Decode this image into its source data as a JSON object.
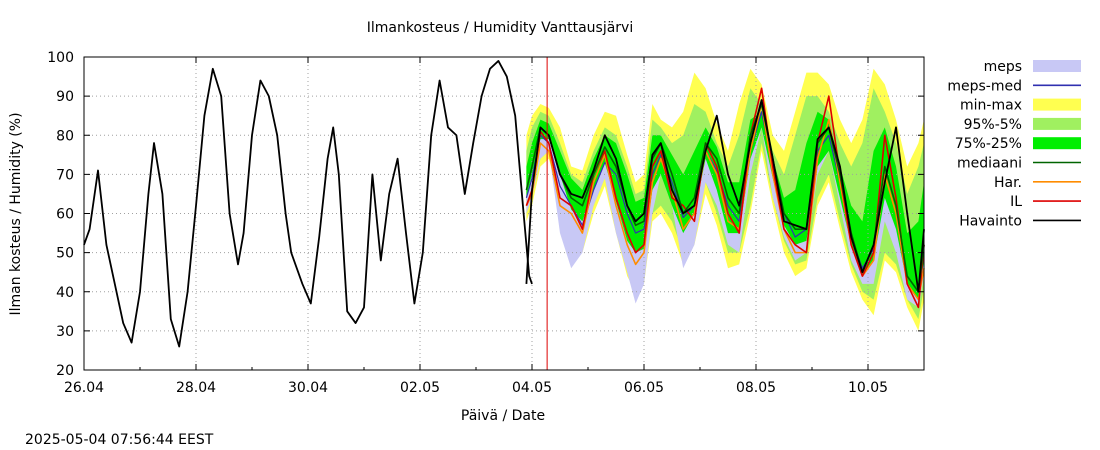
{
  "chart_data": {
    "type": "line",
    "title": "Ilmankosteus / Humidity  Vanttausjärvi",
    "xlabel": "Päivä / Date",
    "ylabel": "Ilman kosteus / Humidity (%)",
    "timestamp": "2025-05-04 07:56:44 EEST",
    "x_unit": "days since 26.04 00:00",
    "xlim": [
      0,
      15.0
    ],
    "ylim": [
      20,
      100
    ],
    "x_ticks": [
      {
        "x": 0,
        "label": "26.04"
      },
      {
        "x": 2,
        "label": "28.04"
      },
      {
        "x": 4,
        "label": "30.04"
      },
      {
        "x": 6,
        "label": "02.05"
      },
      {
        "x": 8,
        "label": "04.05"
      },
      {
        "x": 10,
        "label": "06.05"
      },
      {
        "x": 12,
        "label": "08.05"
      },
      {
        "x": 14,
        "label": "10.05"
      }
    ],
    "y_ticks": [
      20,
      30,
      40,
      50,
      60,
      70,
      80,
      90,
      100
    ],
    "now_x": 8.27,
    "colors": {
      "meps": "#c8c8f5",
      "meps_med": "#3030b0",
      "minmax": "#ffff50",
      "p95_5": "#a0f060",
      "p75_25": "#00ee00",
      "mediaani": "#006400",
      "har": "#ff8c00",
      "il": "#dd0000",
      "havainto": "#000000",
      "now_line": "#dd0000"
    },
    "legend": {
      "position": "right",
      "entries": [
        {
          "key": "meps",
          "label": "meps",
          "style": "box"
        },
        {
          "key": "meps_med",
          "label": "meps-med",
          "style": "line"
        },
        {
          "key": "minmax",
          "label": "min-max",
          "style": "box"
        },
        {
          "key": "p95_5",
          "label": "95%-5%",
          "style": "box"
        },
        {
          "key": "p75_25",
          "label": "75%-25%",
          "style": "box"
        },
        {
          "key": "mediaani",
          "label": "mediaani",
          "style": "line"
        },
        {
          "key": "har",
          "label": "Har.",
          "style": "line"
        },
        {
          "key": "il",
          "label": "IL",
          "style": "line"
        },
        {
          "key": "havainto",
          "label": "Havainto",
          "style": "line"
        }
      ]
    },
    "havainto": {
      "x": [
        0,
        0.1,
        0.25,
        0.4,
        0.55,
        0.7,
        0.85,
        1.0,
        1.15,
        1.25,
        1.4,
        1.55,
        1.7,
        1.85,
        2.0,
        2.15,
        2.3,
        2.45,
        2.6,
        2.75,
        2.85,
        3.0,
        3.15,
        3.3,
        3.45,
        3.6,
        3.7,
        3.9,
        4.05,
        4.2,
        4.35,
        4.45,
        4.55,
        4.7,
        4.85,
        5.0,
        5.15,
        5.3,
        5.45,
        5.6,
        5.75,
        5.9,
        6.05,
        6.2,
        6.35,
        6.5,
        6.65,
        6.8,
        6.95,
        7.1,
        7.25,
        7.4,
        7.55,
        7.7,
        7.85,
        7.95,
        8.0
      ],
      "y": [
        52,
        56,
        71,
        52,
        42,
        32,
        27,
        40,
        65,
        78,
        65,
        33,
        26,
        40,
        62,
        85,
        97,
        90,
        60,
        47,
        55,
        80,
        94,
        90,
        80,
        60,
        50,
        42,
        37,
        54,
        74,
        82,
        70,
        35,
        32,
        36,
        70,
        48,
        65,
        74,
        55,
        37,
        50,
        80,
        94,
        82,
        80,
        65,
        78,
        90,
        97,
        99,
        95,
        85,
        60,
        44,
        42
      ]
    },
    "x": [
      7.9,
      8.0,
      8.15,
      8.3,
      8.5,
      8.7,
      8.9,
      9.1,
      9.3,
      9.5,
      9.7,
      9.85,
      10.0,
      10.15,
      10.3,
      10.5,
      10.7,
      10.9,
      11.1,
      11.3,
      11.5,
      11.7,
      11.9,
      12.1,
      12.3,
      12.5,
      12.7,
      12.9,
      13.1,
      13.3,
      13.5,
      13.7,
      13.9,
      14.1,
      14.3,
      14.5,
      14.7,
      14.9,
      15.0
    ],
    "series": [
      {
        "key": "minmax_hi",
        "values": [
          80,
          85,
          88,
          87,
          82,
          72,
          71,
          80,
          86,
          85,
          75,
          68,
          70,
          88,
          84,
          82,
          86,
          96,
          92,
          83,
          76,
          88,
          97,
          93,
          80,
          76,
          86,
          96,
          96,
          93,
          84,
          78,
          84,
          97,
          93,
          84,
          72,
          78,
          84
        ]
      },
      {
        "key": "minmax_lo",
        "values": [
          58,
          62,
          72,
          74,
          64,
          55,
          50,
          60,
          67,
          55,
          44,
          40,
          42,
          58,
          60,
          55,
          47,
          52,
          65,
          57,
          46,
          47,
          60,
          76,
          62,
          50,
          44,
          46,
          62,
          68,
          56,
          45,
          38,
          34,
          48,
          45,
          36,
          30,
          38
        ]
      },
      {
        "key": "p95_5_hi",
        "values": [
          76,
          82,
          86,
          85,
          78,
          70,
          68,
          76,
          82,
          80,
          72,
          65,
          66,
          84,
          82,
          78,
          80,
          88,
          86,
          78,
          72,
          80,
          92,
          88,
          76,
          70,
          80,
          90,
          90,
          86,
          78,
          72,
          78,
          92,
          86,
          78,
          65,
          72,
          78
        ]
      },
      {
        "key": "p95_5_lo",
        "values": [
          60,
          64,
          74,
          76,
          66,
          57,
          53,
          62,
          69,
          58,
          48,
          45,
          45,
          60,
          62,
          58,
          50,
          55,
          68,
          60,
          50,
          50,
          62,
          78,
          64,
          53,
          47,
          48,
          64,
          70,
          58,
          47,
          40,
          38,
          50,
          47,
          38,
          33,
          41
        ]
      },
      {
        "key": "p75_25_hi",
        "values": [
          72,
          78,
          84,
          83,
          76,
          69,
          66,
          74,
          80,
          78,
          70,
          63,
          64,
          80,
          80,
          75,
          70,
          76,
          82,
          77,
          68,
          68,
          84,
          86,
          74,
          64,
          66,
          78,
          86,
          84,
          72,
          62,
          58,
          76,
          82,
          72,
          55,
          58,
          68
        ]
      },
      {
        "key": "p75_25_lo",
        "values": [
          64,
          70,
          79,
          79,
          70,
          61,
          58,
          66,
          73,
          63,
          53,
          50,
          51,
          66,
          70,
          62,
          55,
          60,
          74,
          66,
          55,
          55,
          74,
          82,
          69,
          57,
          52,
          53,
          72,
          76,
          64,
          52,
          44,
          48,
          64,
          56,
          42,
          38,
          48
        ]
      },
      {
        "key": "meps_hi",
        "values": [
          68,
          72,
          80,
          81,
          72,
          66,
          62,
          69,
          76,
          75,
          66,
          56,
          58,
          73,
          76,
          66,
          60,
          66,
          80,
          74,
          62,
          60,
          80,
          86,
          72,
          62,
          58,
          62,
          80,
          82,
          70,
          56,
          48,
          56,
          76,
          62,
          46,
          42,
          54
        ]
      },
      {
        "key": "meps_lo",
        "values": [
          60,
          64,
          74,
          76,
          55,
          46,
          50,
          62,
          69,
          55,
          45,
          37,
          42,
          60,
          70,
          62,
          46,
          52,
          68,
          62,
          52,
          50,
          70,
          82,
          64,
          54,
          48,
          50,
          70,
          76,
          62,
          48,
          42,
          42,
          58,
          50,
          38,
          36,
          44
        ]
      },
      {
        "key": "meps_med",
        "values": [
          64,
          69,
          80,
          78,
          67,
          62,
          57,
          66,
          73,
          70,
          60,
          55,
          56,
          70,
          75,
          68,
          59,
          62,
          76,
          71,
          62,
          58,
          76,
          86,
          72,
          60,
          54,
          56,
          76,
          80,
          68,
          54,
          46,
          51,
          70,
          60,
          44,
          40,
          50
        ]
      },
      {
        "key": "mediaani",
        "values": [
          66,
          72,
          82,
          80,
          70,
          64,
          62,
          70,
          77,
          72,
          62,
          57,
          58,
          74,
          78,
          70,
          60,
          64,
          78,
          74,
          64,
          60,
          80,
          88,
          74,
          60,
          56,
          56,
          78,
          82,
          70,
          55,
          45,
          52,
          72,
          62,
          44,
          40,
          52
        ]
      },
      {
        "key": "har",
        "values": [
          62,
          65,
          78,
          76,
          62,
          60,
          55,
          68,
          75,
          62,
          52,
          47,
          50,
          68,
          74,
          66,
          56,
          60,
          76,
          70,
          58,
          56,
          76,
          88,
          70,
          56,
          50,
          50,
          74,
          84,
          68,
          52,
          44,
          48,
          70,
          60,
          42,
          38,
          46
        ]
      },
      {
        "key": "il",
        "values": [
          62,
          66,
          81,
          78,
          64,
          62,
          56,
          70,
          76,
          64,
          55,
          50,
          52,
          72,
          76,
          64,
          62,
          58,
          78,
          72,
          60,
          55,
          80,
          92,
          72,
          56,
          52,
          50,
          78,
          90,
          70,
          52,
          44,
          50,
          80,
          64,
          42,
          36,
          52
        ]
      },
      {
        "key": "havainto_fc",
        "values": [
          42,
          66,
          82,
          80,
          70,
          65,
          64,
          71,
          80,
          74,
          62,
          58,
          60,
          75,
          78,
          66,
          60,
          62,
          76,
          85,
          70,
          62,
          78,
          89,
          74,
          58,
          57,
          56,
          79,
          82,
          72,
          54,
          45,
          52,
          68,
          82,
          60,
          40,
          56
        ]
      }
    ]
  }
}
